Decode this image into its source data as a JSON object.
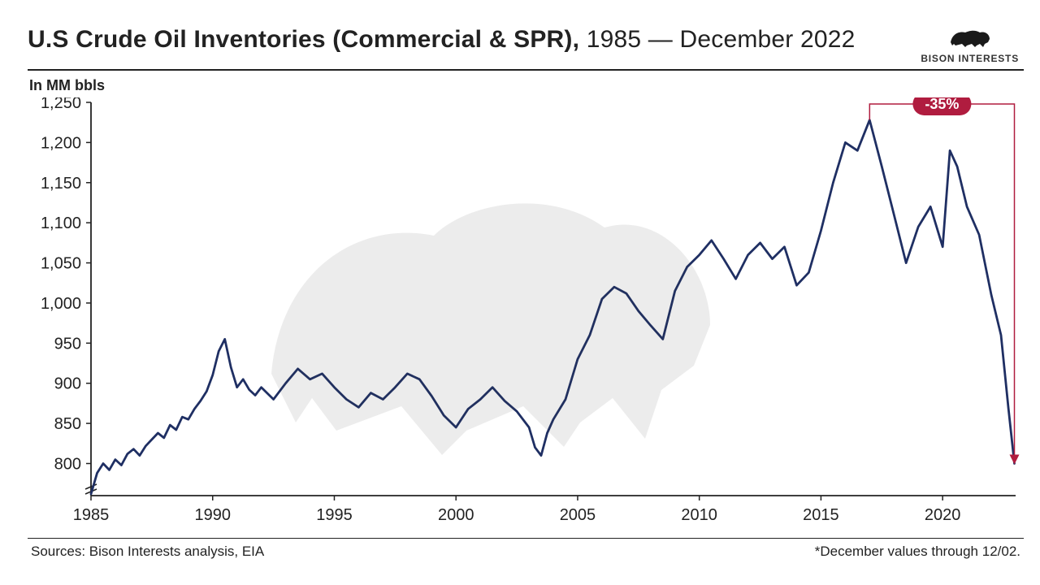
{
  "header": {
    "title_bold": "U.S Crude Oil Inventories (Commercial & SPR),",
    "title_light": " 1985 — December 2022",
    "brand_name": "BISON INTERESTS"
  },
  "subtitle": "In MM bbls",
  "footer": {
    "sources": "Sources: Bison Interests analysis, EIA",
    "note": "*December values through 12/02."
  },
  "chart": {
    "type": "line",
    "background_color": "#ffffff",
    "line_color": "#1f2f63",
    "line_width": 2.8,
    "xlim": [
      1985,
      2023
    ],
    "ylim": [
      760,
      1250
    ],
    "x_ticks": [
      1985,
      1990,
      1995,
      2000,
      2005,
      2010,
      2015,
      2020
    ],
    "y_ticks": [
      800,
      850,
      900,
      950,
      1000,
      1050,
      1100,
      1150,
      1200,
      1250
    ],
    "y_tick_labels": [
      "800",
      "850",
      "900",
      "950",
      "1,000",
      "1,050",
      "1,100",
      "1,150",
      "1,200",
      "1,250"
    ],
    "tick_font_size": 20,
    "tick_color": "#222222",
    "axis_color": "#222222",
    "series": [
      {
        "x": 1985.0,
        "y": 762
      },
      {
        "x": 1985.25,
        "y": 788
      },
      {
        "x": 1985.5,
        "y": 800
      },
      {
        "x": 1985.75,
        "y": 792
      },
      {
        "x": 1986.0,
        "y": 805
      },
      {
        "x": 1986.25,
        "y": 798
      },
      {
        "x": 1986.5,
        "y": 812
      },
      {
        "x": 1986.75,
        "y": 818
      },
      {
        "x": 1987.0,
        "y": 810
      },
      {
        "x": 1987.25,
        "y": 822
      },
      {
        "x": 1987.5,
        "y": 830
      },
      {
        "x": 1987.75,
        "y": 838
      },
      {
        "x": 1988.0,
        "y": 832
      },
      {
        "x": 1988.25,
        "y": 848
      },
      {
        "x": 1988.5,
        "y": 842
      },
      {
        "x": 1988.75,
        "y": 858
      },
      {
        "x": 1989.0,
        "y": 855
      },
      {
        "x": 1989.25,
        "y": 868
      },
      {
        "x": 1989.5,
        "y": 878
      },
      {
        "x": 1989.75,
        "y": 890
      },
      {
        "x": 1990.0,
        "y": 910
      },
      {
        "x": 1990.25,
        "y": 940
      },
      {
        "x": 1990.5,
        "y": 955
      },
      {
        "x": 1990.75,
        "y": 920
      },
      {
        "x": 1991.0,
        "y": 895
      },
      {
        "x": 1991.25,
        "y": 905
      },
      {
        "x": 1991.5,
        "y": 892
      },
      {
        "x": 1991.75,
        "y": 885
      },
      {
        "x": 1992.0,
        "y": 895
      },
      {
        "x": 1992.5,
        "y": 880
      },
      {
        "x": 1993.0,
        "y": 900
      },
      {
        "x": 1993.5,
        "y": 918
      },
      {
        "x": 1994.0,
        "y": 905
      },
      {
        "x": 1994.5,
        "y": 912
      },
      {
        "x": 1995.0,
        "y": 895
      },
      {
        "x": 1995.5,
        "y": 880
      },
      {
        "x": 1996.0,
        "y": 870
      },
      {
        "x": 1996.5,
        "y": 888
      },
      {
        "x": 1997.0,
        "y": 880
      },
      {
        "x": 1997.5,
        "y": 895
      },
      {
        "x": 1998.0,
        "y": 912
      },
      {
        "x": 1998.5,
        "y": 905
      },
      {
        "x": 1999.0,
        "y": 884
      },
      {
        "x": 1999.5,
        "y": 860
      },
      {
        "x": 2000.0,
        "y": 845
      },
      {
        "x": 2000.5,
        "y": 868
      },
      {
        "x": 2001.0,
        "y": 880
      },
      {
        "x": 2001.5,
        "y": 895
      },
      {
        "x": 2002.0,
        "y": 878
      },
      {
        "x": 2002.5,
        "y": 865
      },
      {
        "x": 2003.0,
        "y": 845
      },
      {
        "x": 2003.25,
        "y": 820
      },
      {
        "x": 2003.5,
        "y": 810
      },
      {
        "x": 2003.75,
        "y": 838
      },
      {
        "x": 2004.0,
        "y": 855
      },
      {
        "x": 2004.5,
        "y": 880
      },
      {
        "x": 2005.0,
        "y": 930
      },
      {
        "x": 2005.5,
        "y": 960
      },
      {
        "x": 2006.0,
        "y": 1005
      },
      {
        "x": 2006.5,
        "y": 1020
      },
      {
        "x": 2007.0,
        "y": 1012
      },
      {
        "x": 2007.5,
        "y": 990
      },
      {
        "x": 2008.0,
        "y": 972
      },
      {
        "x": 2008.5,
        "y": 955
      },
      {
        "x": 2009.0,
        "y": 1015
      },
      {
        "x": 2009.5,
        "y": 1045
      },
      {
        "x": 2010.0,
        "y": 1060
      },
      {
        "x": 2010.5,
        "y": 1078
      },
      {
        "x": 2011.0,
        "y": 1055
      },
      {
        "x": 2011.5,
        "y": 1030
      },
      {
        "x": 2012.0,
        "y": 1060
      },
      {
        "x": 2012.5,
        "y": 1075
      },
      {
        "x": 2013.0,
        "y": 1055
      },
      {
        "x": 2013.5,
        "y": 1070
      },
      {
        "x": 2014.0,
        "y": 1022
      },
      {
        "x": 2014.5,
        "y": 1038
      },
      {
        "x": 2015.0,
        "y": 1090
      },
      {
        "x": 2015.5,
        "y": 1150
      },
      {
        "x": 2016.0,
        "y": 1200
      },
      {
        "x": 2016.5,
        "y": 1190
      },
      {
        "x": 2017.0,
        "y": 1228
      },
      {
        "x": 2017.5,
        "y": 1170
      },
      {
        "x": 2018.0,
        "y": 1110
      },
      {
        "x": 2018.5,
        "y": 1050
      },
      {
        "x": 2019.0,
        "y": 1095
      },
      {
        "x": 2019.5,
        "y": 1120
      },
      {
        "x": 2020.0,
        "y": 1070
      },
      {
        "x": 2020.3,
        "y": 1190
      },
      {
        "x": 2020.6,
        "y": 1170
      },
      {
        "x": 2021.0,
        "y": 1120
      },
      {
        "x": 2021.5,
        "y": 1085
      },
      {
        "x": 2022.0,
        "y": 1010
      },
      {
        "x": 2022.4,
        "y": 960
      },
      {
        "x": 2022.7,
        "y": 870
      },
      {
        "x": 2022.95,
        "y": 800
      }
    ],
    "callout": {
      "label": "-35%",
      "bg_color": "#b01c3f",
      "text_color": "#ffffff",
      "text_fontsize": 18,
      "from_x": 2017.0,
      "from_y": 1228,
      "top_y": 1248,
      "to_x": 2022.95,
      "to_y": 805,
      "line_color": "#b01c3f",
      "line_width": 1.5
    }
  }
}
